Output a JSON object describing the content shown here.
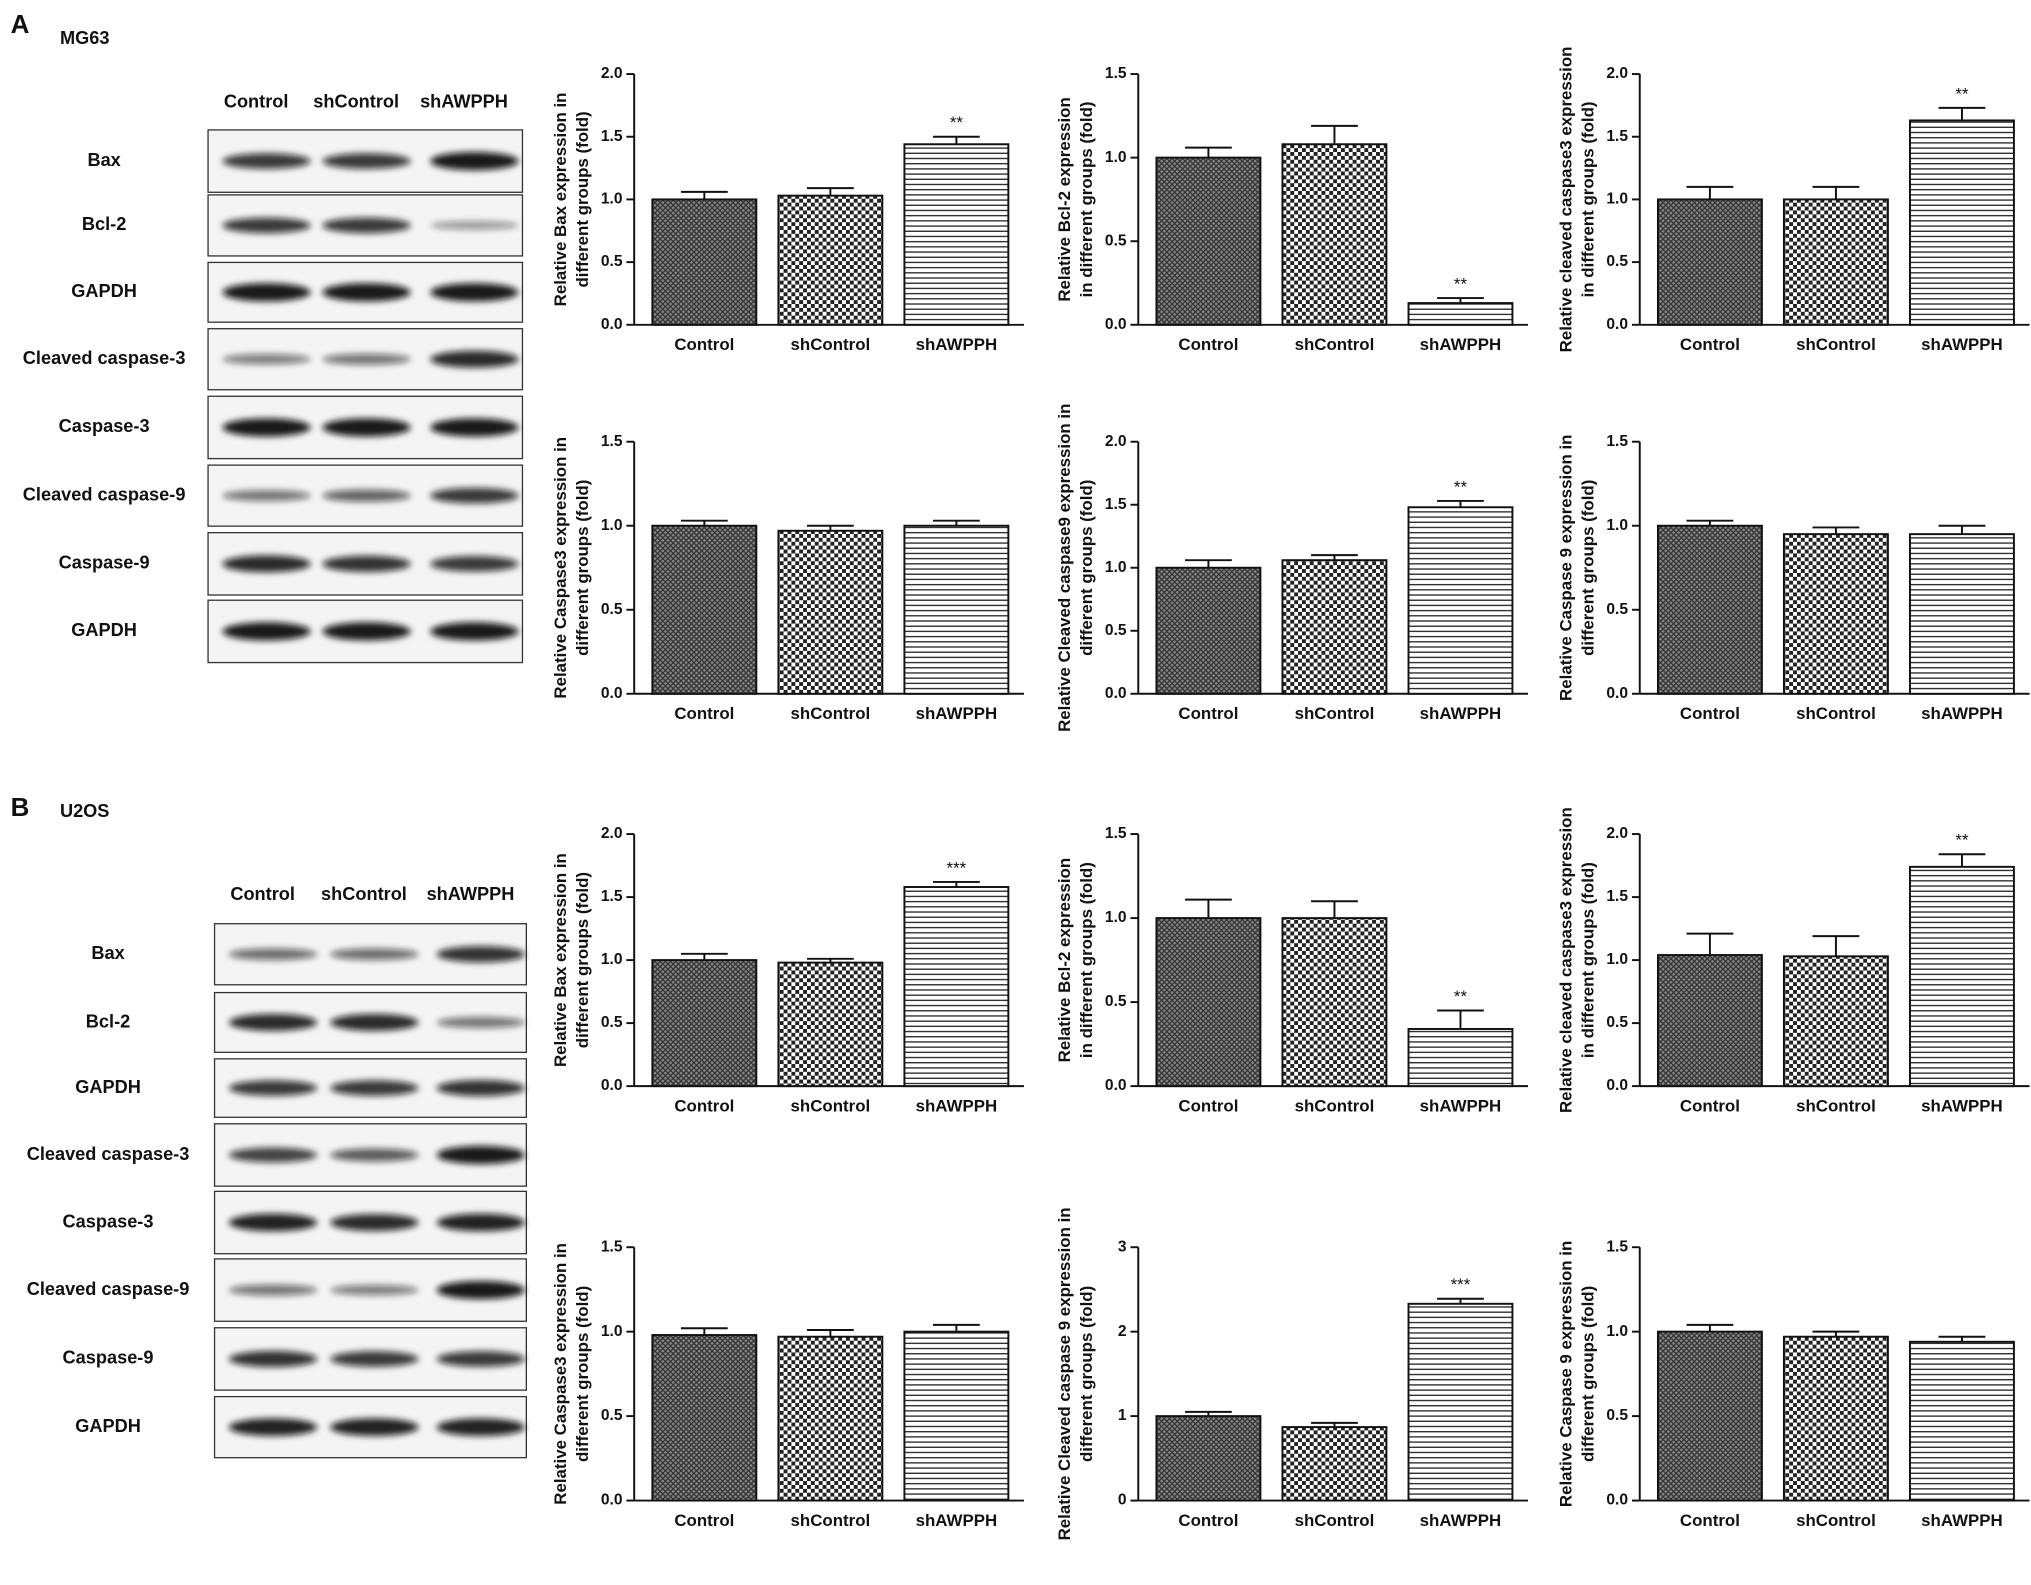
{
  "panels": [
    {
      "label": "A",
      "cell_line": "MG63",
      "blot": {
        "lanes": [
          "Control",
          "shControl",
          "shAWPPH"
        ],
        "rows": [
          "Bax",
          "Bcl-2",
          "GAPDH",
          "Cleaved caspase-3",
          "Caspase-3",
          "Cleaved caspase-9",
          "Caspase-9",
          "GAPDH"
        ]
      }
    },
    {
      "label": "B",
      "cell_line": "U2OS",
      "blot": {
        "lanes": [
          "Control",
          "shControl",
          "shAWPPH"
        ],
        "rows": [
          "Bax",
          "Bcl-2",
          "GAPDH",
          "Cleaved caspase-3",
          "Caspase-3",
          "Cleaved caspase-9",
          "Caspase-9",
          "GAPDH"
        ]
      }
    }
  ],
  "chart_data": [
    {
      "type": "bar",
      "ylabel": [
        "Relative Bax expression in",
        "different groups (fold)"
      ],
      "categories": [
        "Control",
        "shControl",
        "shAWPPH"
      ],
      "values": [
        1.0,
        1.03,
        1.44
      ],
      "errors": [
        0.06,
        0.06,
        0.06
      ],
      "significance": [
        null,
        null,
        "**"
      ],
      "ylim": [
        0,
        2
      ],
      "yticks": [
        {
          "value": 0,
          "label": "0.0"
        },
        {
          "value": 0.5,
          "label": "0.5"
        },
        {
          "value": 1,
          "label": "1.0"
        },
        {
          "value": 1.5,
          "label": "1.5"
        },
        {
          "value": 2,
          "label": "2.0"
        }
      ]
    },
    {
      "type": "bar",
      "ylabel": [
        "Relative Bcl-2 expression",
        "in different groups (fold)"
      ],
      "categories": [
        "Control",
        "shControl",
        "shAWPPH"
      ],
      "values": [
        1.0,
        1.08,
        0.13
      ],
      "errors": [
        0.06,
        0.11,
        0.03
      ],
      "significance": [
        null,
        null,
        "**"
      ],
      "ylim": [
        0,
        1.5
      ],
      "yticks": [
        {
          "value": 0,
          "label": "0.0"
        },
        {
          "value": 0.5,
          "label": "0.5"
        },
        {
          "value": 1,
          "label": "1.0"
        },
        {
          "value": 1.5,
          "label": "1.5"
        }
      ]
    },
    {
      "type": "bar",
      "ylabel": [
        "Relative cleaved caspase3 expression",
        "in different groups (fold)"
      ],
      "categories": [
        "Control",
        "shControl",
        "shAWPPH"
      ],
      "values": [
        1.0,
        1.0,
        1.63
      ],
      "errors": [
        0.1,
        0.1,
        0.1
      ],
      "significance": [
        null,
        null,
        "**"
      ],
      "ylim": [
        0,
        2
      ],
      "yticks": [
        {
          "value": 0,
          "label": "0.0"
        },
        {
          "value": 0.5,
          "label": "0.5"
        },
        {
          "value": 1,
          "label": "1.0"
        },
        {
          "value": 1.5,
          "label": "1.5"
        },
        {
          "value": 2,
          "label": "2.0"
        }
      ]
    },
    {
      "type": "bar",
      "ylabel": [
        "Relative Caspase3 expression in",
        "different groups (fold)"
      ],
      "categories": [
        "Control",
        "shControl",
        "shAWPPH"
      ],
      "values": [
        1.0,
        0.97,
        1.0
      ],
      "errors": [
        0.03,
        0.03,
        0.03
      ],
      "significance": [
        null,
        null,
        null
      ],
      "ylim": [
        0,
        1.5
      ],
      "yticks": [
        {
          "value": 0,
          "label": "0.0"
        },
        {
          "value": 0.5,
          "label": "0.5"
        },
        {
          "value": 1,
          "label": "1.0"
        },
        {
          "value": 1.5,
          "label": "1.5"
        }
      ]
    },
    {
      "type": "bar",
      "ylabel": [
        "Relative Cleaved caspase9 expression in",
        "different groups (fold)"
      ],
      "categories": [
        "Control",
        "shControl",
        "shAWPPH"
      ],
      "values": [
        1.0,
        1.06,
        1.48
      ],
      "errors": [
        0.06,
        0.04,
        0.05
      ],
      "significance": [
        null,
        null,
        "**"
      ],
      "ylim": [
        0,
        2
      ],
      "yticks": [
        {
          "value": 0,
          "label": "0.0"
        },
        {
          "value": 0.5,
          "label": "0.5"
        },
        {
          "value": 1,
          "label": "1.0"
        },
        {
          "value": 1.5,
          "label": "1.5"
        },
        {
          "value": 2,
          "label": "2.0"
        }
      ]
    },
    {
      "type": "bar",
      "ylabel": [
        "Relative Caspase 9 expression in",
        "different groups (fold)"
      ],
      "categories": [
        "Control",
        "shControl",
        "shAWPPH"
      ],
      "values": [
        1.0,
        0.95,
        0.95
      ],
      "errors": [
        0.03,
        0.04,
        0.05
      ],
      "significance": [
        null,
        null,
        null
      ],
      "ylim": [
        0,
        1.5
      ],
      "yticks": [
        {
          "value": 0,
          "label": "0.0"
        },
        {
          "value": 0.5,
          "label": "0.5"
        },
        {
          "value": 1,
          "label": "1.0"
        },
        {
          "value": 1.5,
          "label": "1.5"
        }
      ]
    },
    {
      "type": "bar",
      "ylabel": [
        "Relative Bax expression in",
        "different groups (fold)"
      ],
      "categories": [
        "Control",
        "shControl",
        "shAWPPH"
      ],
      "values": [
        1.0,
        0.98,
        1.58
      ],
      "errors": [
        0.05,
        0.03,
        0.04
      ],
      "significance": [
        null,
        null,
        "***"
      ],
      "ylim": [
        0,
        2
      ],
      "yticks": [
        {
          "value": 0,
          "label": "0.0"
        },
        {
          "value": 0.5,
          "label": "0.5"
        },
        {
          "value": 1,
          "label": "1.0"
        },
        {
          "value": 1.5,
          "label": "1.5"
        },
        {
          "value": 2,
          "label": "2.0"
        }
      ]
    },
    {
      "type": "bar",
      "ylabel": [
        "Relative Bcl-2 expression",
        "in different groups (fold)"
      ],
      "categories": [
        "Control",
        "shControl",
        "shAWPPH"
      ],
      "values": [
        1.0,
        1.0,
        0.34
      ],
      "errors": [
        0.11,
        0.1,
        0.11
      ],
      "significance": [
        null,
        null,
        "**"
      ],
      "ylim": [
        0,
        1.5
      ],
      "yticks": [
        {
          "value": 0,
          "label": "0.0"
        },
        {
          "value": 0.5,
          "label": "0.5"
        },
        {
          "value": 1,
          "label": "1.0"
        },
        {
          "value": 1.5,
          "label": "1.5"
        }
      ]
    },
    {
      "type": "bar",
      "ylabel": [
        "Relative cleaved caspase3 expression",
        "in different groups (fold)"
      ],
      "categories": [
        "Control",
        "shControl",
        "shAWPPH"
      ],
      "values": [
        1.04,
        1.03,
        1.74
      ],
      "errors": [
        0.17,
        0.16,
        0.1
      ],
      "significance": [
        null,
        null,
        "**"
      ],
      "ylim": [
        0,
        2
      ],
      "yticks": [
        {
          "value": 0,
          "label": "0.0"
        },
        {
          "value": 0.5,
          "label": "0.5"
        },
        {
          "value": 1,
          "label": "1.0"
        },
        {
          "value": 1.5,
          "label": "1.5"
        },
        {
          "value": 2,
          "label": "2.0"
        }
      ]
    },
    {
      "type": "bar",
      "ylabel": [
        "Relative Caspase3 expression in",
        "different groups (fold)"
      ],
      "categories": [
        "Control",
        "shControl",
        "shAWPPH"
      ],
      "values": [
        0.98,
        0.97,
        1.0
      ],
      "errors": [
        0.04,
        0.04,
        0.04
      ],
      "significance": [
        null,
        null,
        null
      ],
      "ylim": [
        0,
        1.5
      ],
      "yticks": [
        {
          "value": 0,
          "label": "0.0"
        },
        {
          "value": 0.5,
          "label": "0.5"
        },
        {
          "value": 1,
          "label": "1.0"
        },
        {
          "value": 1.5,
          "label": "1.5"
        }
      ]
    },
    {
      "type": "bar",
      "ylabel": [
        "Relative Cleaved caspase 9 expression in",
        "different groups (fold)"
      ],
      "categories": [
        "Control",
        "shControl",
        "shAWPPH"
      ],
      "values": [
        1.0,
        0.87,
        2.33
      ],
      "errors": [
        0.05,
        0.05,
        0.06
      ],
      "significance": [
        null,
        null,
        "***"
      ],
      "ylim": [
        0,
        3
      ],
      "yticks": [
        0,
        1,
        2,
        3
      ]
    },
    {
      "type": "bar",
      "ylabel": [
        "Relative Caspase 9 expression in",
        "different groups (fold)"
      ],
      "categories": [
        "Control",
        "shControl",
        "shAWPPH"
      ],
      "values": [
        1.0,
        0.97,
        0.94
      ],
      "errors": [
        0.04,
        0.03,
        0.03
      ],
      "significance": [
        null,
        null,
        null
      ],
      "ylim": [
        0,
        1.5
      ],
      "yticks": [
        {
          "value": 0,
          "label": "0.0"
        },
        {
          "value": 0.5,
          "label": "0.5"
        },
        {
          "value": 1,
          "label": "1.0"
        },
        {
          "value": 1.5,
          "label": "1.5"
        }
      ]
    }
  ]
}
